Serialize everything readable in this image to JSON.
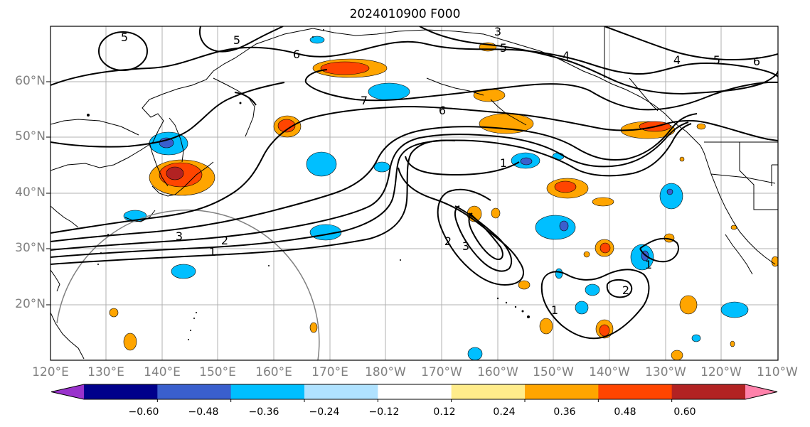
{
  "title": "2024010900 F000",
  "lat_labels": [
    "60°N",
    "50°N",
    "40°N",
    "30°N",
    "20°N"
  ],
  "lon_labels": [
    "120°E",
    "130°E",
    "140°E",
    "150°E",
    "160°E",
    "170°E",
    "180°W",
    "170°W",
    "160°W",
    "150°W",
    "140°W",
    "130°W",
    "120°W",
    "110°W"
  ],
  "colorbar": {
    "colors": [
      "#9932cc",
      "#00008b",
      "#3a5fcd",
      "#00bfff",
      "#b0e2ff",
      "#ffffff",
      "#ffec8b",
      "#ffa500",
      "#ff4500",
      "#b22222",
      "#ff82ab"
    ],
    "tick_labels": [
      "−0.60",
      "−0.48",
      "−0.36",
      "−0.24",
      "−0.12",
      "0.12",
      "0.24",
      "0.36",
      "0.48",
      "0.60"
    ]
  },
  "contour_labels": [
    "5",
    "5",
    "6",
    "3",
    "5",
    "4",
    "4",
    "5",
    "6",
    "7",
    "6",
    "1",
    "2",
    "3",
    "1",
    "3",
    "2",
    "1",
    "2",
    "1",
    "1"
  ],
  "colors": {
    "grid": "#b0b0b0",
    "contour": "#000000",
    "coast": "#000000",
    "range_circle": "#808080",
    "axis_text": "#808080"
  }
}
